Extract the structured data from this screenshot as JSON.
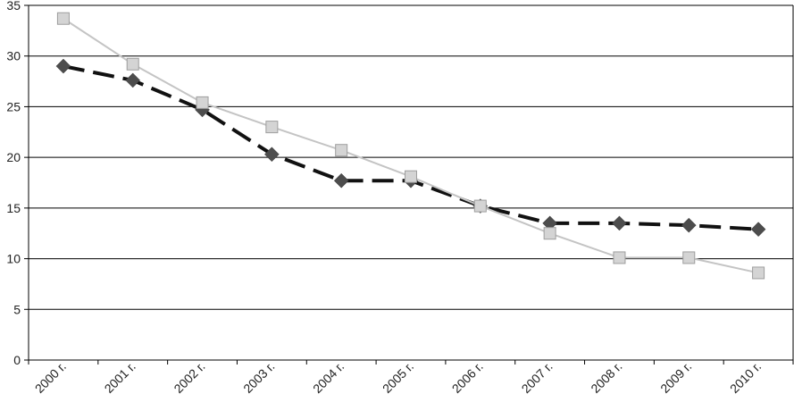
{
  "chart_data": {
    "type": "line",
    "title": "",
    "xlabel": "",
    "ylabel": "",
    "categories": [
      "2000 г.",
      "2001 г.",
      "2002 г.",
      "2003 г.",
      "2004 г.",
      "2005 г.",
      "2006 г.",
      "2007 г.",
      "2008 г.",
      "2009 г.",
      "2010 г."
    ],
    "ylim": [
      0,
      35
    ],
    "yticks": [
      "0",
      "5",
      "10",
      "15",
      "20",
      "25",
      "30",
      "35"
    ],
    "grid": true,
    "legend": "none",
    "series": [
      {
        "values": [
          29.0,
          27.6,
          24.7,
          20.3,
          17.7,
          17.7,
          15.2,
          13.5,
          13.5,
          13.3,
          12.9
        ],
        "color": "#4d4d4d",
        "line_color": "#111111",
        "line_style": "dashed",
        "marker": "diamond"
      },
      {
        "values": [
          33.7,
          29.2,
          25.4,
          23.0,
          20.7,
          18.1,
          15.2,
          12.5,
          10.1,
          10.1,
          8.6
        ],
        "color": "#d4d4d4",
        "line_color": "#c4c4c4",
        "line_style": "solid",
        "marker": "square"
      }
    ]
  }
}
